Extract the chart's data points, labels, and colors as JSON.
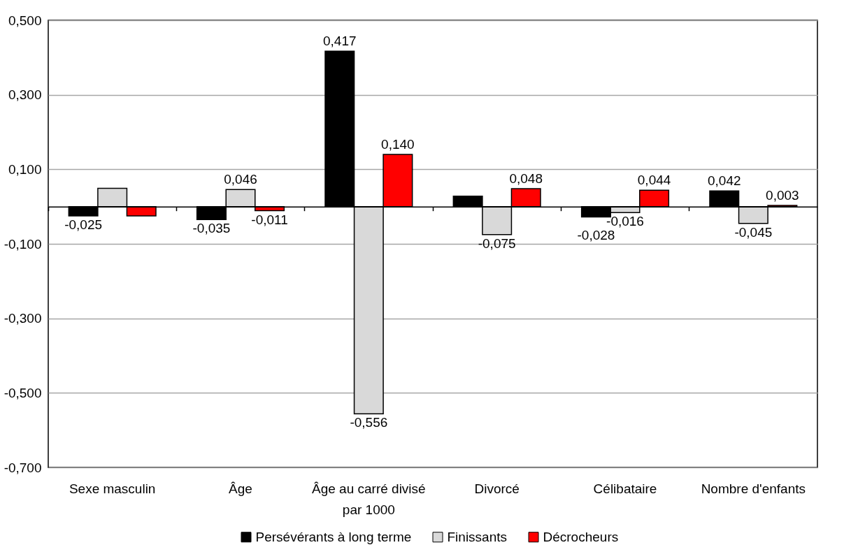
{
  "chart_data": {
    "type": "bar",
    "categories": [
      "Sexe masculin",
      "Âge",
      "Âge au carré divisé par 1000",
      "Divorcé",
      "Célibataire",
      "Nombre d'enfants"
    ],
    "series": [
      {
        "name": "Persévérants à long terme",
        "color": "#000000",
        "values": [
          -0.025,
          -0.035,
          0.417,
          0.028,
          -0.028,
          0.042
        ],
        "value_labels": [
          "-0,025",
          "-0,035",
          "0,417",
          null,
          "-0,028",
          "0,042"
        ]
      },
      {
        "name": "Finissants",
        "color": "#d9d9d9",
        "values": [
          0.049,
          0.046,
          -0.556,
          -0.075,
          -0.016,
          -0.045
        ],
        "value_labels": [
          null,
          "0,046",
          "-0,556",
          "-0,075",
          "-0,016",
          "-0,045"
        ]
      },
      {
        "name": "Décrocheurs",
        "color": "#ff0000",
        "values": [
          -0.025,
          -0.011,
          0.14,
          0.048,
          0.044,
          0.003
        ],
        "value_labels": [
          null,
          "-0,011",
          "0,140",
          "0,048",
          "0,044",
          "0,003"
        ]
      }
    ],
    "ylim": [
      -0.7,
      0.5
    ],
    "yticks": [
      {
        "value": -0.7,
        "label": "-0,700"
      },
      {
        "value": -0.5,
        "label": "-0,500"
      },
      {
        "value": -0.3,
        "label": "-0,300"
      },
      {
        "value": -0.1,
        "label": "-0,100"
      },
      {
        "value": 0.1,
        "label": "0,100"
      },
      {
        "value": 0.3,
        "label": "0,300"
      },
      {
        "value": 0.5,
        "label": "0,500"
      }
    ],
    "grid": "y",
    "legend": "bottom"
  }
}
